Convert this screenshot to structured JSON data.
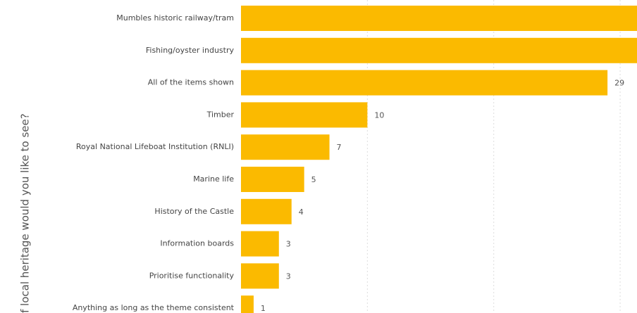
{
  "chart_data": {
    "type": "hbar",
    "y_label": "f local heritage would you like to see?",
    "categories": [
      "Mumbles historic railway/tram",
      "Fishing/oyster industry",
      "All of the items shown",
      "Timber",
      "Royal National Lifeboat Institution (RNLI)",
      "Marine life",
      "History of the Castle",
      "Information boards",
      "Prioritise functionality",
      "Anything as long as the theme consistent"
    ],
    "values": [
      33,
      32,
      29,
      10,
      7,
      5,
      4,
      3,
      3,
      1
    ],
    "color": "#fbba00",
    "xlim": [
      0,
      31
    ],
    "xticks": [
      10,
      20,
      30
    ],
    "grid": true
  }
}
